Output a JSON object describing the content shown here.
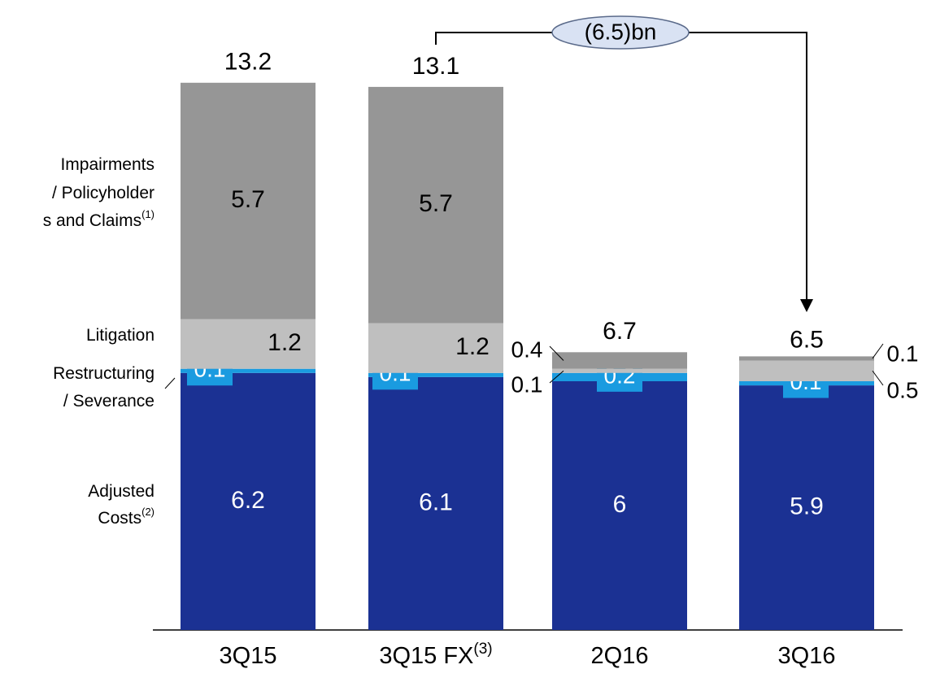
{
  "chart_data": {
    "type": "stacked-bar",
    "categories": [
      "3Q15",
      "3Q15 FX",
      "2Q16",
      "3Q16"
    ],
    "category_notes": [
      null,
      "(3)",
      null,
      null
    ],
    "series": [
      {
        "name": [
          "Adjusted",
          "Costs"
        ],
        "note": "(2)",
        "color": "#1b3193",
        "values": [
          6.2,
          6.1,
          6.0,
          5.9
        ]
      },
      {
        "name": [
          "Restructuring",
          "/ Severance"
        ],
        "color": "#1a9be0",
        "values": [
          0.1,
          0.1,
          0.2,
          0.1
        ]
      },
      {
        "name": [
          "Litigation"
        ],
        "color": "#bfbfbf",
        "values": [
          1.2,
          1.2,
          0.1,
          0.5
        ]
      },
      {
        "name": [
          "Impairments",
          "/ Policyholder",
          "s and Claims"
        ],
        "note": "(1)",
        "color": "#969696",
        "values": [
          5.7,
          5.7,
          0.4,
          0.1
        ]
      }
    ],
    "totals": [
      13.2,
      13.1,
      6.7,
      6.5
    ],
    "annotation": "(6.5)bn",
    "ylim": [
      0,
      15
    ]
  }
}
